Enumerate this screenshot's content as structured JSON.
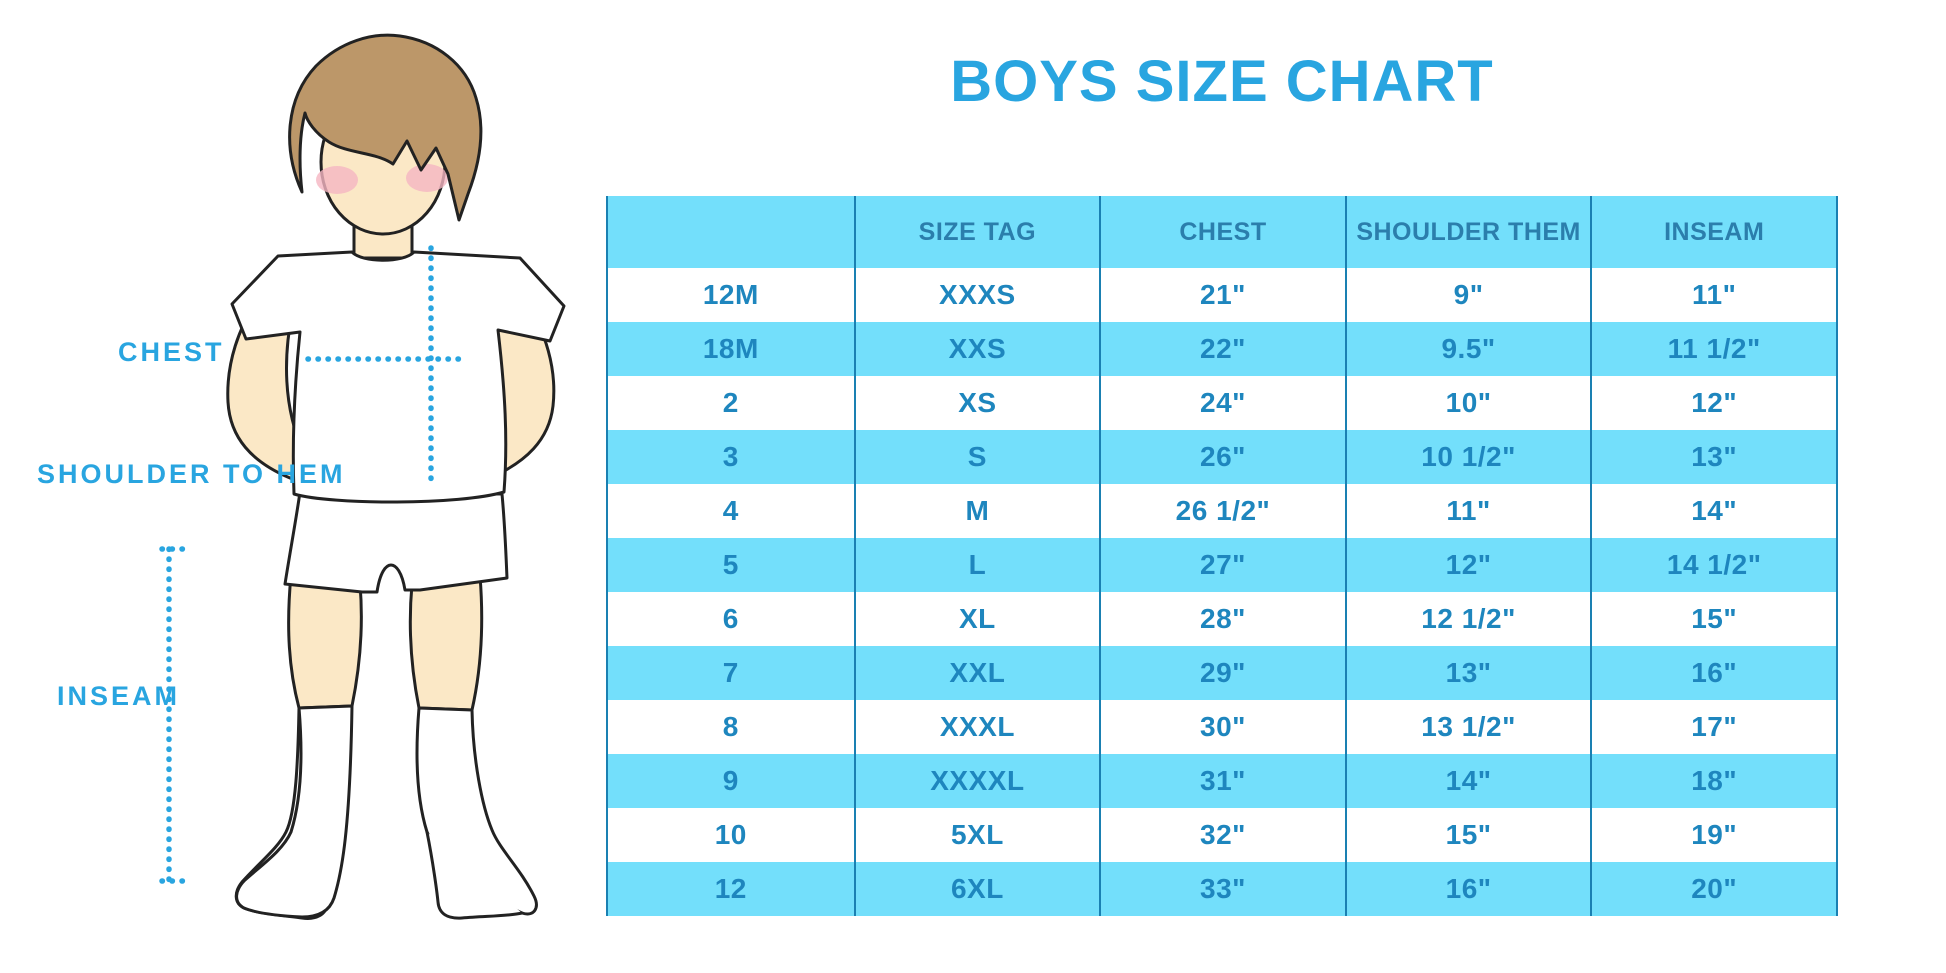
{
  "title": "BOYS SIZE CHART",
  "figure": {
    "description": "outline illustration of a boy in white t-shirt, shorts and knee socks with dotted measurement guides",
    "labels": {
      "chest": "CHEST",
      "shoulder_to_hem": "SHOULDER TO HEM",
      "inseam": "INSEAM"
    }
  },
  "table": {
    "columns": [
      "",
      "SIZE TAG",
      "CHEST",
      "SHOULDER THEM",
      "INSEAM"
    ],
    "rows": [
      [
        "12M",
        "XXXS",
        "21\"",
        "9\"",
        "11\""
      ],
      [
        "18M",
        "XXS",
        "22\"",
        "9.5\"",
        "11 1/2\""
      ],
      [
        "2",
        "XS",
        "24\"",
        "10\"",
        "12\""
      ],
      [
        "3",
        "S",
        "26\"",
        "10 1/2\"",
        "13\""
      ],
      [
        "4",
        "M",
        "26 1/2\"",
        "11\"",
        "14\""
      ],
      [
        "5",
        "L",
        "27\"",
        "12\"",
        "14 1/2\""
      ],
      [
        "6",
        "XL",
        "28\"",
        "12 1/2\"",
        "15\""
      ],
      [
        "7",
        "XXL",
        "29\"",
        "13\"",
        "16\""
      ],
      [
        "8",
        "XXXL",
        "30\"",
        "13 1/2\"",
        "17\""
      ],
      [
        "9",
        "XXXXL",
        "31\"",
        "14\"",
        "18\""
      ],
      [
        "10",
        "5XL",
        "32\"",
        "15\"",
        "19\""
      ],
      [
        "12",
        "6XL",
        "33\"",
        "16\"",
        "20\""
      ]
    ]
  },
  "colors": {
    "accent_blue": "#29A5E0",
    "row_cyan": "#73DFFB",
    "table_line": "#1A80B2",
    "cell_text": "#1E86BE",
    "header_text": "#2B7EAC",
    "skin": "#FBE8C6",
    "hair": "#BC9769",
    "cheek": "#F5B5C2",
    "outline": "#222222"
  }
}
